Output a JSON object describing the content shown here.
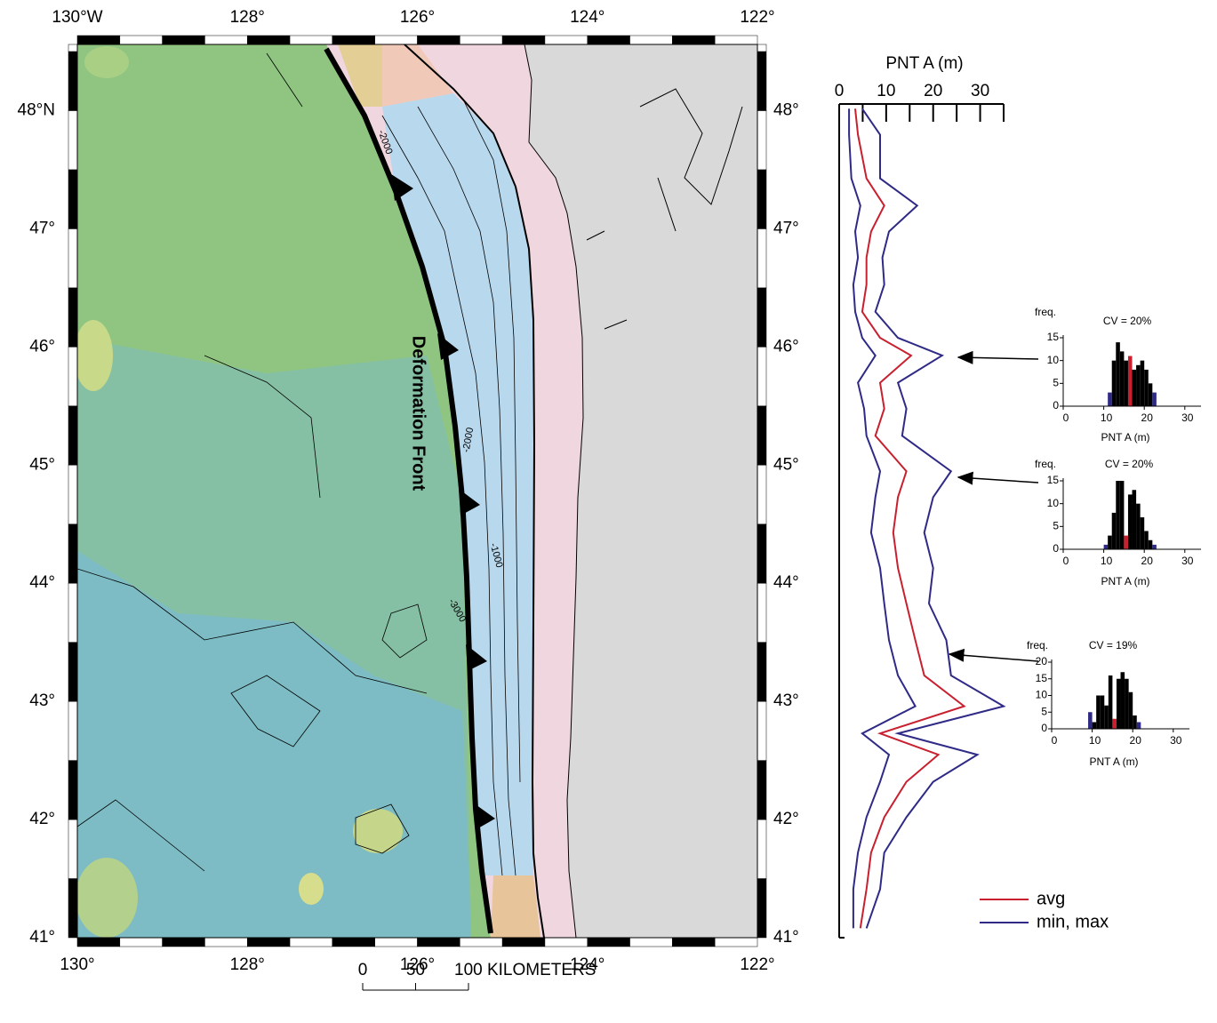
{
  "chart_data": [
    {
      "type": "map",
      "xlim": [
        -130,
        -122
      ],
      "ylim": [
        41,
        48.56
      ],
      "xticks_top": [
        {
          "value": -130,
          "label": "130°W"
        },
        {
          "value": -128,
          "label": "128°"
        },
        {
          "value": -126,
          "label": "126°"
        },
        {
          "value": -124,
          "label": "124°"
        },
        {
          "value": -122,
          "label": "122°"
        }
      ],
      "xticks_bottom": [
        {
          "value": -130,
          "label": "130°"
        },
        {
          "value": -128,
          "label": "128°"
        },
        {
          "value": -126,
          "label": "126°"
        },
        {
          "value": -124,
          "label": "124°"
        },
        {
          "value": -122,
          "label": "122°"
        }
      ],
      "yticks_left": [
        {
          "value": 48,
          "label": "48°N"
        },
        {
          "value": 47,
          "label": "47°"
        },
        {
          "value": 46,
          "label": "46°"
        },
        {
          "value": 45,
          "label": "45°"
        },
        {
          "value": 44,
          "label": "44°"
        },
        {
          "value": 43,
          "label": "43°"
        },
        {
          "value": 42,
          "label": "42°"
        },
        {
          "value": 41,
          "label": "41°"
        }
      ],
      "yticks_right": [
        {
          "value": 48,
          "label": "48°"
        },
        {
          "value": 47,
          "label": "47°"
        },
        {
          "value": 46,
          "label": "46°"
        },
        {
          "value": 45,
          "label": "45°"
        },
        {
          "value": 44,
          "label": "44°"
        },
        {
          "value": 43,
          "label": "43°"
        },
        {
          "value": 42,
          "label": "42°"
        },
        {
          "value": 41,
          "label": "41°"
        }
      ],
      "annotations": [
        "Deformation Front",
        "-2000",
        "-2000",
        "-1000",
        "-3000"
      ],
      "scale_ticks": [
        0,
        50,
        {
          "value": 100,
          "label": "100 KILOMETERS"
        }
      ]
    },
    {
      "type": "line",
      "title": "PNT A (m)",
      "xlim": [
        0,
        35
      ],
      "xticks": [
        0,
        10,
        20,
        30
      ],
      "minor_xticks": [
        5,
        15,
        25,
        35
      ],
      "ylim": [
        41,
        48.06
      ],
      "y": [
        48.02,
        47.8,
        47.43,
        47.2,
        46.98,
        46.76,
        46.53,
        46.3,
        46.08,
        45.93,
        45.7,
        45.48,
        45.25,
        44.95,
        44.73,
        44.43,
        44.13,
        43.83,
        43.52,
        43.22,
        42.96,
        42.73,
        42.55,
        42.32,
        42.02,
        41.72,
        41.41,
        41.08
      ],
      "series": [
        {
          "name": "avg",
          "color": "#c8202f",
          "values": [
            3.4,
            4.0,
            5.8,
            9.6,
            6.8,
            5.8,
            5.8,
            4.9,
            8.7,
            15.3,
            8.7,
            9.6,
            7.7,
            14.3,
            12.5,
            11.5,
            12.5,
            14.3,
            16.2,
            18.1,
            26.6,
            8.7,
            21.1,
            14.3,
            9.6,
            6.8,
            5.8,
            4.5
          ]
        },
        {
          "name": "min, max",
          "color": "#2e2a86",
          "min": [
            2.1,
            2.1,
            2.6,
            4.5,
            3.4,
            4.0,
            3.0,
            3.4,
            4.9,
            7.7,
            4.0,
            5.3,
            5.8,
            8.7,
            7.7,
            6.8,
            8.7,
            9.6,
            10.6,
            12.5,
            16.2,
            4.9,
            10.6,
            8.7,
            5.8,
            4.0,
            3.0,
            3.0
          ],
          "max": [
            4.9,
            8.7,
            8.7,
            16.6,
            10.6,
            9.2,
            9.6,
            7.7,
            12.5,
            21.9,
            12.5,
            14.3,
            13.4,
            23.8,
            20.0,
            18.1,
            20.0,
            19.1,
            22.8,
            23.8,
            35.0,
            12.5,
            29.4,
            20.0,
            14.3,
            9.6,
            8.7,
            5.8
          ]
        }
      ],
      "legend": "lower right"
    },
    {
      "type": "histogram",
      "title": "CV = 20%",
      "ylabel": "freq.",
      "xlabel": "PNT A (m)",
      "bins": [
        11,
        12,
        13,
        14,
        15,
        16,
        17,
        18,
        19,
        20,
        21,
        22,
        23
      ],
      "counts": [
        3,
        10,
        14,
        12,
        10,
        11,
        8,
        9,
        10,
        8,
        5,
        3
      ],
      "bar_colors": [
        "#2e2a86",
        "#000000",
        "#000000",
        "#000000",
        "#000000",
        "#c8202f",
        "#000000",
        "#000000",
        "#000000",
        "#000000",
        "#000000",
        "#2e2a86"
      ],
      "xlim": [
        0,
        34
      ],
      "xticks": [
        0,
        10,
        20,
        30
      ],
      "ylim": [
        0,
        15
      ],
      "yticks": [
        0,
        5,
        10,
        15
      ]
    },
    {
      "type": "histogram",
      "title": "CV = 20%",
      "ylabel": "freq.",
      "xlabel": "PNT A (m)",
      "bins": [
        10,
        11,
        12,
        13,
        14,
        15,
        16,
        17,
        18,
        19,
        20,
        21,
        22,
        23
      ],
      "counts": [
        1,
        3,
        8,
        15,
        15,
        3,
        12,
        13,
        10,
        7,
        4,
        2,
        1
      ],
      "bar_colors": [
        "#2e2a86",
        "#000000",
        "#000000",
        "#000000",
        "#000000",
        "#c8202f",
        "#000000",
        "#000000",
        "#000000",
        "#000000",
        "#000000",
        "#000000",
        "#2e2a86"
      ],
      "xlim": [
        0,
        34
      ],
      "xticks": [
        0,
        10,
        20,
        30
      ],
      "ylim": [
        0,
        15
      ],
      "yticks": [
        0,
        5,
        10,
        15
      ]
    },
    {
      "type": "histogram",
      "title": "CV = 19%",
      "ylabel": "freq.",
      "xlabel": "PNT A (m)",
      "bins": [
        9,
        10,
        11,
        12,
        13,
        14,
        15,
        16,
        17,
        18,
        19,
        20,
        21,
        22
      ],
      "counts": [
        5,
        2,
        10,
        10,
        7,
        16,
        3,
        15,
        17,
        15,
        11,
        4,
        2
      ],
      "bar_colors": [
        "#2e2a86",
        "#000000",
        "#000000",
        "#000000",
        "#000000",
        "#000000",
        "#c8202f",
        "#000000",
        "#000000",
        "#000000",
        "#000000",
        "#000000",
        "#2e2a86"
      ],
      "xlim": [
        0,
        34
      ],
      "xticks": [
        0,
        10,
        20,
        30
      ],
      "ylim": [
        0,
        20
      ],
      "yticks": [
        0,
        5,
        10,
        15,
        20
      ]
    }
  ]
}
